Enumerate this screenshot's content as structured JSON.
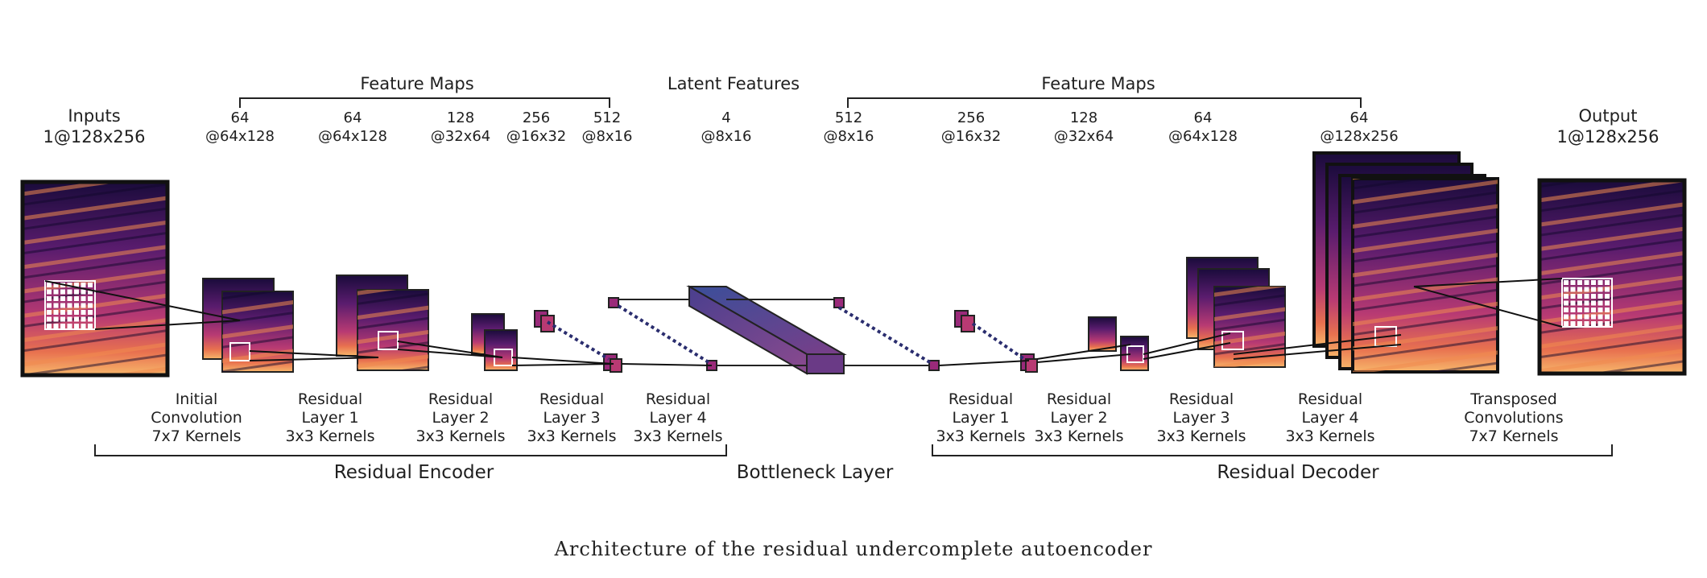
{
  "top": {
    "inputs_title": "Inputs",
    "inputs_dims": "1@128x256",
    "output_title": "Output",
    "output_dims": "1@128x256",
    "encoder_feature_maps": "Feature Maps",
    "latent_title": "Latent Features",
    "decoder_feature_maps": "Feature Maps",
    "encoder_dims": [
      {
        "ch": "64",
        "size": "@64x128"
      },
      {
        "ch": "64",
        "size": "@64x128"
      },
      {
        "ch": "128",
        "size": "@32x64"
      },
      {
        "ch": "256",
        "size": "@16x32"
      },
      {
        "ch": "512",
        "size": "@8x16"
      }
    ],
    "latent_dims": {
      "ch": "4",
      "size": "@8x16"
    },
    "decoder_dims": [
      {
        "ch": "512",
        "size": "@8x16"
      },
      {
        "ch": "256",
        "size": "@16x32"
      },
      {
        "ch": "128",
        "size": "@32x64"
      },
      {
        "ch": "64",
        "size": "@64x128"
      },
      {
        "ch": "64",
        "size": "@128x256"
      }
    ]
  },
  "layers": {
    "encoder": [
      {
        "l1": "Initial",
        "l2": "Convolution",
        "l3": "7x7 Kernels"
      },
      {
        "l1": "Residual",
        "l2": "Layer 1",
        "l3": "3x3 Kernels"
      },
      {
        "l1": "Residual",
        "l2": "Layer  2",
        "l3": "3x3 Kernels"
      },
      {
        "l1": "Residual",
        "l2": "Layer 3",
        "l3": "3x3 Kernels"
      },
      {
        "l1": "Residual",
        "l2": "Layer 4",
        "l3": "3x3 Kernels"
      }
    ],
    "decoder": [
      {
        "l1": "Residual",
        "l2": "Layer 1",
        "l3": "3x3 Kernels"
      },
      {
        "l1": "Residual",
        "l2": "Layer 2",
        "l3": "3x3 Kernels"
      },
      {
        "l1": "Residual",
        "l2": "Layer 3",
        "l3": "3x3 Kernels"
      },
      {
        "l1": "Residual",
        "l2": "Layer 4",
        "l3": "3x3 Kernels"
      },
      {
        "l1": "Transposed",
        "l2": "Convolutions",
        "l3": "7x7 Kernels"
      }
    ]
  },
  "sections": {
    "encoder": "Residual Encoder",
    "bottleneck": "Bottleneck Layer",
    "decoder": "Residual Decoder"
  },
  "caption": "Architecture of the residual undercomplete autoencoder",
  "colors": {
    "spectrogram_dark": "#1a0b3b",
    "spectrogram_mid": "#9a2a7a",
    "spectrogram_hot": "#f59a4c",
    "bottleneck_start": "#3a4f9a",
    "bottleneck_end": "#7a3e88",
    "line": "#222222"
  }
}
